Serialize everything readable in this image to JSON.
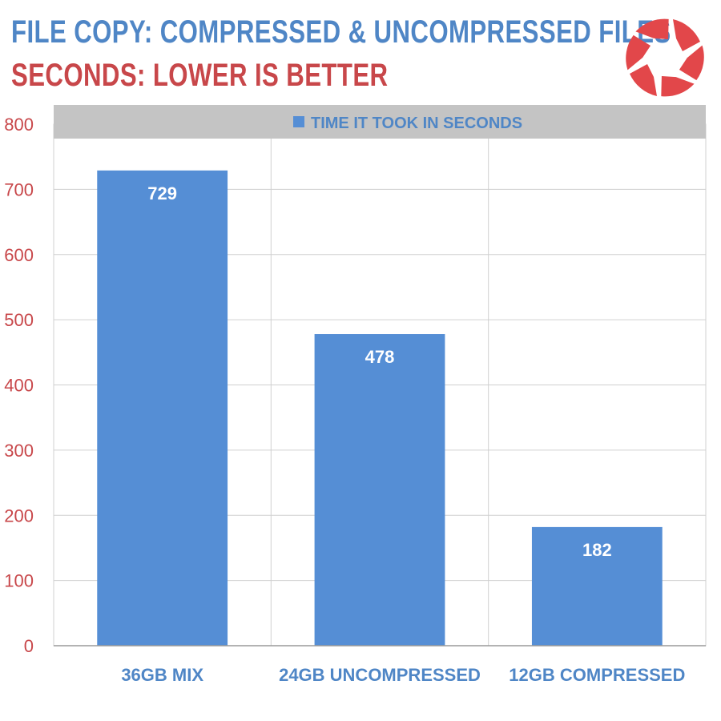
{
  "chart_data": {
    "type": "bar",
    "title": "FILE COPY: COMPRESSED & UNCOMPRESSED FILES",
    "subtitle": "SECONDS: LOWER IS BETTER",
    "categories": [
      "36GB MIX",
      "24GB UNCOMPRESSED",
      "12GB COMPRESSED"
    ],
    "series": [
      {
        "name": "TIME IT TOOK IN SECONDS",
        "values": [
          729,
          478,
          182
        ]
      }
    ],
    "data_labels": [
      "729",
      "478",
      "182"
    ],
    "ylim": [
      0,
      800
    ],
    "yticks": [
      0,
      100,
      200,
      300,
      400,
      500,
      600,
      700,
      800
    ],
    "ytick_labels": [
      "0",
      "100",
      "200",
      "300",
      "400",
      "500",
      "600",
      "700",
      "800"
    ],
    "grid": true,
    "legend_position": "top",
    "colors": {
      "bar": "#558ed5",
      "title": "#4f86c6",
      "subtitle": "#c8474a",
      "y_ticks": "#c8474a",
      "legend_band": "#c4c4c4",
      "gridline": "#d0d0d0",
      "logo": "#e2474a"
    }
  },
  "logo": {
    "icon": "aperture-logo-icon"
  }
}
